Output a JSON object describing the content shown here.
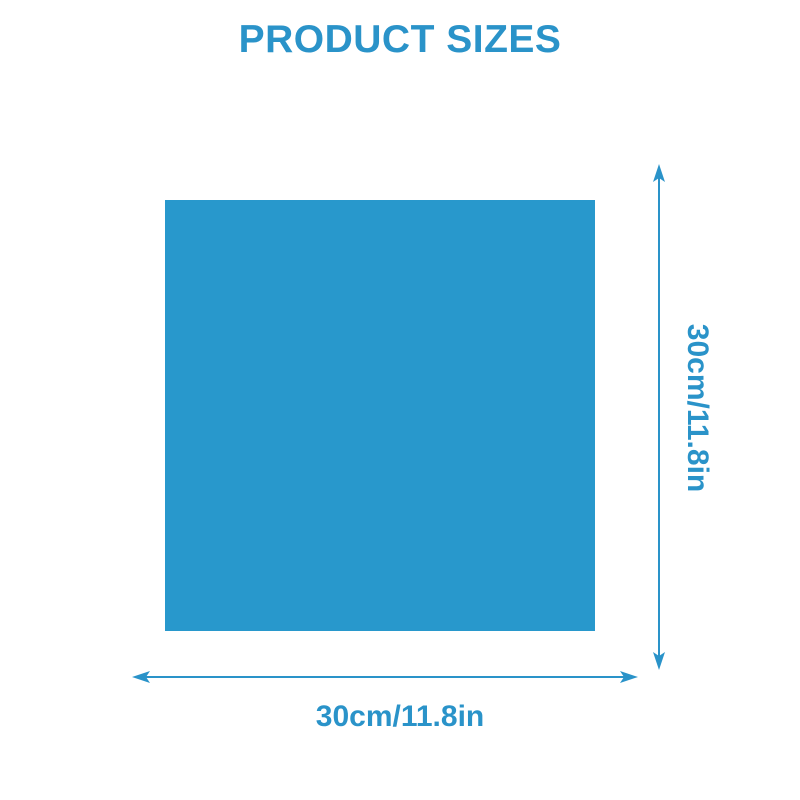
{
  "title": "PRODUCT SIZES",
  "product": {
    "color": "#2898cc"
  },
  "dimensions": {
    "width_label": "30cm/11.8in",
    "height_label": "30cm/11.8in",
    "arrow_color": "#2a93c9"
  }
}
